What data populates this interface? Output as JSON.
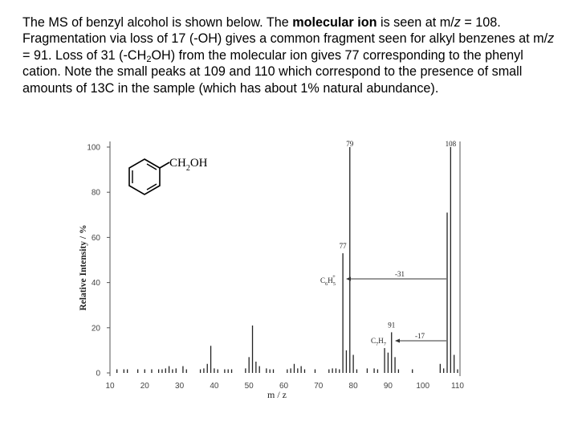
{
  "paragraph": {
    "s1a": "The MS of benzyl alcohol is shown below. The ",
    "s1b": "molecular ion",
    "s1c": " is seen at m/",
    "s1d": "z",
    "s1e": " = 108. Fragmentation via loss of 17 (-OH) gives a common fragment seen for alkyl benzenes at m/",
    "s1f": "z",
    "s1g": " = 91.  Loss of 31 (-CH",
    "s1h": "2",
    "s1i": "OH) from the molecular ion gives 77 corresponding to the phenyl cation. Note the small peaks at 109 and 110 which correspond to the presence of small amounts of 13C in the sample (which has about 1% natural abundance)."
  },
  "chart_data": {
    "type": "bar",
    "xlabel": "m / z",
    "ylabel": "Relative Intensity / %",
    "xlim": [
      10,
      110
    ],
    "ylim": [
      0,
      100
    ],
    "xticks": [
      10,
      20,
      30,
      40,
      50,
      60,
      70,
      80,
      90,
      100,
      110
    ],
    "yticks": [
      0,
      20,
      40,
      60,
      80,
      100
    ],
    "ytick_labels": [
      "0",
      "20",
      "40",
      "60",
      "80",
      "100"
    ],
    "peaks": [
      {
        "mz": 12,
        "i": 0.5
      },
      {
        "mz": 14,
        "i": 0.5
      },
      {
        "mz": 15,
        "i": 1
      },
      {
        "mz": 18,
        "i": 1
      },
      {
        "mz": 20,
        "i": 1
      },
      {
        "mz": 22,
        "i": 1
      },
      {
        "mz": 24,
        "i": 1
      },
      {
        "mz": 25,
        "i": 1.5
      },
      {
        "mz": 26,
        "i": 2
      },
      {
        "mz": 27,
        "i": 3
      },
      {
        "mz": 28,
        "i": 1
      },
      {
        "mz": 29,
        "i": 2
      },
      {
        "mz": 31,
        "i": 3
      },
      {
        "mz": 32,
        "i": 1
      },
      {
        "mz": 36,
        "i": 0.5
      },
      {
        "mz": 37,
        "i": 2
      },
      {
        "mz": 38,
        "i": 4
      },
      {
        "mz": 39,
        "i": 12
      },
      {
        "mz": 40,
        "i": 2
      },
      {
        "mz": 41,
        "i": 1
      },
      {
        "mz": 43,
        "i": 1
      },
      {
        "mz": 44,
        "i": 1
      },
      {
        "mz": 45,
        "i": 1
      },
      {
        "mz": 49,
        "i": 2
      },
      {
        "mz": 50,
        "i": 7
      },
      {
        "mz": 51,
        "i": 21
      },
      {
        "mz": 52,
        "i": 5
      },
      {
        "mz": 53,
        "i": 3
      },
      {
        "mz": 55,
        "i": 2
      },
      {
        "mz": 56,
        "i": 1
      },
      {
        "mz": 57,
        "i": 1
      },
      {
        "mz": 61,
        "i": 1
      },
      {
        "mz": 62,
        "i": 2
      },
      {
        "mz": 63,
        "i": 4
      },
      {
        "mz": 64,
        "i": 2
      },
      {
        "mz": 65,
        "i": 3
      },
      {
        "mz": 66,
        "i": 1
      },
      {
        "mz": 69,
        "i": 1
      },
      {
        "mz": 73,
        "i": 1
      },
      {
        "mz": 74,
        "i": 2
      },
      {
        "mz": 75,
        "i": 2
      },
      {
        "mz": 76,
        "i": 1
      },
      {
        "mz": 77,
        "i": 53
      },
      {
        "mz": 78,
        "i": 10
      },
      {
        "mz": 79,
        "i": 100
      },
      {
        "mz": 80,
        "i": 8
      },
      {
        "mz": 81,
        "i": 1
      },
      {
        "mz": 84,
        "i": 2
      },
      {
        "mz": 86,
        "i": 2
      },
      {
        "mz": 87,
        "i": 1
      },
      {
        "mz": 89,
        "i": 11
      },
      {
        "mz": 90,
        "i": 9
      },
      {
        "mz": 91,
        "i": 18
      },
      {
        "mz": 92,
        "i": 7
      },
      {
        "mz": 93,
        "i": 1
      },
      {
        "mz": 97,
        "i": 1
      },
      {
        "mz": 105,
        "i": 4
      },
      {
        "mz": 106,
        "i": 2
      },
      {
        "mz": 107,
        "i": 71
      },
      {
        "mz": 108,
        "i": 100
      },
      {
        "mz": 109,
        "i": 8
      },
      {
        "mz": 110,
        "i": 1
      }
    ],
    "peak_labels": [
      {
        "mz": 79,
        "text": "79"
      },
      {
        "mz": 108,
        "text": "108"
      },
      {
        "mz": 77,
        "text": "77"
      },
      {
        "mz": 91,
        "text": "91"
      }
    ],
    "annotations": {
      "loss31": "-31",
      "loss17": "-17",
      "phenyl_main": "C",
      "phenyl_sub1": "6",
      "phenyl_mid": "H",
      "phenyl_sub2": "5",
      "phenyl_sup": "+",
      "tropylium_main": "C",
      "tropylium_sub1": "7",
      "tropylium_mid": "H",
      "tropylium_sub2": "7"
    },
    "structure": {
      "label_a": "CH",
      "label_sub": "2",
      "label_b": "OH"
    }
  }
}
